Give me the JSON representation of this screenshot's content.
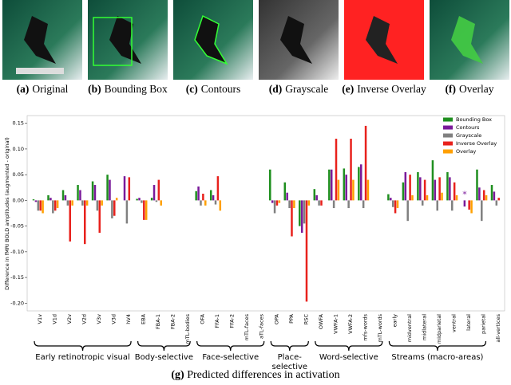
{
  "figure": {
    "panels": [
      {
        "label": "(a)",
        "caption": "Original"
      },
      {
        "label": "(b)",
        "caption": "Bounding Box"
      },
      {
        "label": "(c)",
        "caption": "Contours"
      },
      {
        "label": "(d)",
        "caption": "Grayscale"
      },
      {
        "label": "(e)",
        "caption": "Inverse Overlay"
      },
      {
        "label": "(f)",
        "caption": "Overlay"
      }
    ],
    "caption_label": "(g)",
    "caption": "Predicted differences in activation"
  },
  "chart_data": {
    "type": "bar",
    "y_label": "Difference in fMRI BOLD amplitudes (augmented - original)",
    "categories": [
      "V1v",
      "V1d",
      "V2v",
      "V2d",
      "V3v",
      "V3d",
      "hV4",
      "EBA",
      "FBA-1",
      "FBA-2",
      "mTL-bodies",
      "OFA",
      "FFA-1",
      "FFA-2",
      "mTL-faces",
      "aTL-faces",
      "OPA",
      "PPA",
      "RSC",
      "OWFA",
      "VWFA-1",
      "VWFA-2",
      "mfs-words",
      "mTL-words",
      "early",
      "midventral",
      "midlateral",
      "midparietal",
      "ventral",
      "lateral",
      "parietal",
      "all-vertices"
    ],
    "groups": [
      "Early retinotropic visual",
      "Body-selective",
      "Face-selective",
      "Place-\nselective",
      "Word-selective",
      "Streams (macro-areas)"
    ],
    "series": [
      {
        "name": "Bounding Box",
        "color": "#1f8f1f",
        "values": [
          0.002,
          0.01,
          0.02,
          0.03,
          0.037,
          0.05,
          0,
          0.003,
          0.005,
          0,
          0,
          0.018,
          0.02,
          0,
          0,
          0,
          0.06,
          0.035,
          -0.05,
          0.022,
          0.06,
          0.062,
          0.065,
          0,
          0.012,
          0.035,
          0.055,
          0.078,
          0.055,
          0,
          0.06,
          0.03
        ]
      },
      {
        "name": "Contours",
        "color": "#7a1a9a",
        "values": [
          -0.003,
          0.005,
          0.01,
          0.02,
          0.03,
          0.04,
          0.047,
          0.005,
          0.03,
          0,
          0,
          0.027,
          0.01,
          0,
          0,
          0,
          -0.005,
          0.015,
          -0.063,
          0.01,
          0.06,
          0.05,
          0.07,
          0,
          0.005,
          0.055,
          0.045,
          0.04,
          0.045,
          -0.012,
          0.025,
          0.017
        ]
      },
      {
        "name": "Grayscale",
        "color": "#808080",
        "values": [
          -0.02,
          -0.025,
          -0.01,
          -0.01,
          -0.02,
          -0.035,
          -0.045,
          -0.005,
          -0.003,
          0,
          0,
          -0.01,
          -0.008,
          0,
          0,
          0,
          -0.025,
          -0.015,
          -0.045,
          -0.01,
          -0.015,
          -0.015,
          -0.015,
          0,
          -0.013,
          -0.04,
          -0.01,
          -0.02,
          -0.02,
          0,
          -0.04,
          -0.01
        ]
      },
      {
        "name": "Inverse Overlay",
        "color": "#e8211c",
        "values": [
          -0.02,
          -0.02,
          -0.08,
          -0.085,
          -0.063,
          -0.03,
          0.045,
          -0.038,
          0.04,
          0,
          0,
          0.013,
          0.047,
          0,
          0,
          0,
          -0.01,
          -0.07,
          -0.197,
          -0.01,
          0.12,
          0.12,
          0.145,
          0,
          -0.025,
          0.05,
          0.04,
          0.045,
          0.035,
          -0.018,
          0.02,
          0.005
        ]
      },
      {
        "name": "Overlay",
        "color": "#ffa000",
        "values": [
          -0.025,
          -0.015,
          -0.01,
          -0.01,
          -0.01,
          0.005,
          0,
          -0.038,
          -0.01,
          0,
          0,
          -0.01,
          -0.02,
          0,
          0,
          0,
          -0.005,
          -0.015,
          -0.01,
          0,
          0.04,
          0.04,
          0.04,
          0,
          -0.015,
          0.01,
          0.01,
          0.015,
          0.01,
          -0.025,
          0.01,
          0
        ]
      }
    ],
    "annotation": {
      "text": "*",
      "x": "lateral"
    },
    "ylim": [
      -0.215,
      0.165
    ],
    "yticks": [
      {
        "value": -0.2,
        "label": "-0.20"
      },
      -0.15,
      {
        "value": -0.1,
        "label": "-0.10"
      },
      -0.05,
      {
        "value": 0,
        "label": "0.00"
      },
      0.05,
      {
        "value": 0.1,
        "label": "0.10"
      },
      0.15
    ],
    "legend": "upper right"
  }
}
